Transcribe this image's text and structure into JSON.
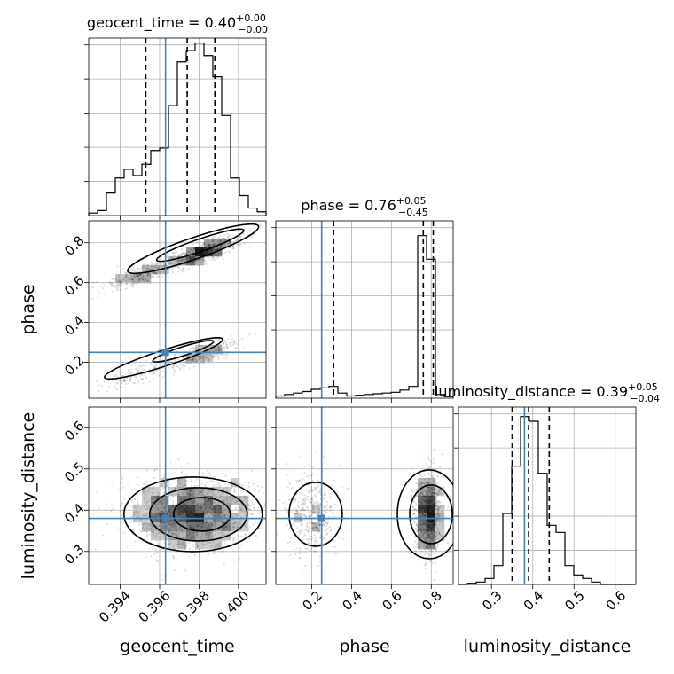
{
  "chart_data": {
    "type": "corner",
    "parameters": [
      "geocent_time",
      "phase",
      "luminosity_distance"
    ],
    "truths": {
      "geocent_time": 0.3963,
      "phase": 0.25,
      "luminosity_distance": 0.38
    },
    "ranges": {
      "geocent_time": [
        0.3924,
        0.4014
      ],
      "phase": [
        0.02,
        0.91
      ],
      "luminosity_distance": [
        0.22,
        0.65
      ]
    },
    "ticks": {
      "geocent_time": [
        0.394,
        0.396,
        0.398,
        0.4
      ],
      "phase": [
        0.2,
        0.4,
        0.6,
        0.8
      ],
      "luminosity_distance": [
        0.3,
        0.4,
        0.5,
        0.6
      ]
    },
    "tick_labels": {
      "geocent_time": [
        "0.394",
        "0.396",
        "0.398",
        "0.400"
      ],
      "phase": [
        "0.2",
        "0.4",
        "0.6",
        "0.8"
      ],
      "luminosity_distance": [
        "0.3",
        "0.4",
        "0.5",
        "0.6"
      ]
    },
    "titles": [
      {
        "text": "geocent_time = 0.40",
        "sup": "+0.00",
        "sub": "−0.00"
      },
      {
        "text": "phase = 0.76",
        "sup": "+0.05",
        "sub": "−0.45"
      },
      {
        "text": "luminosity_distance = 0.39",
        "sup": "+0.05",
        "sub": "−0.04"
      }
    ],
    "quantiles": {
      "geocent_time": [
        0.3953,
        0.3974,
        0.3988
      ],
      "phase": [
        0.31,
        0.76,
        0.81
      ],
      "luminosity_distance": [
        0.35,
        0.39,
        0.44
      ]
    },
    "histograms": {
      "geocent_time": {
        "edges": [
          0.3924,
          0.39285,
          0.3933,
          0.39375,
          0.3942,
          0.39465,
          0.3951,
          0.39555,
          0.396,
          0.39645,
          0.3969,
          0.39735,
          0.3978,
          0.39825,
          0.3987,
          0.39915,
          0.3996,
          0.40005,
          0.4005,
          0.40095,
          0.4014
        ],
        "counts": [
          2,
          4,
          18,
          30,
          37,
          32,
          41,
          52,
          54,
          88,
          123,
          132,
          138,
          128,
          111,
          80,
          30,
          16,
          6,
          3
        ]
      },
      "phase": {
        "edges": [
          0.02,
          0.0645,
          0.109,
          0.1535,
          0.198,
          0.2425,
          0.287,
          0.3315,
          0.376,
          0.4205,
          0.465,
          0.5095,
          0.554,
          0.5985,
          0.643,
          0.6875,
          0.732,
          0.7765,
          0.821,
          0.8655,
          0.91
        ],
        "counts": [
          3,
          5,
          7,
          9,
          12,
          14,
          16,
          7,
          3,
          4,
          5,
          6,
          7,
          8,
          11,
          16,
          220,
          188,
          5,
          2
        ]
      },
      "luminosity_distance": {
        "edges": [
          0.22,
          0.2415,
          0.263,
          0.2845,
          0.306,
          0.3275,
          0.349,
          0.3705,
          0.392,
          0.4135,
          0.435,
          0.4565,
          0.478,
          0.4995,
          0.521,
          0.5425,
          0.564,
          0.5855,
          0.607,
          0.6285,
          0.65
        ],
        "counts": [
          0,
          1,
          2,
          5,
          16,
          60,
          100,
          142,
          138,
          94,
          50,
          44,
          16,
          8,
          5,
          2,
          0,
          0,
          0,
          0
        ]
      }
    },
    "ylim_hist": {
      "geocent_time": [
        0,
        142
      ],
      "phase": [
        0,
        240
      ],
      "luminosity_distance": [
        0,
        150
      ]
    }
  }
}
